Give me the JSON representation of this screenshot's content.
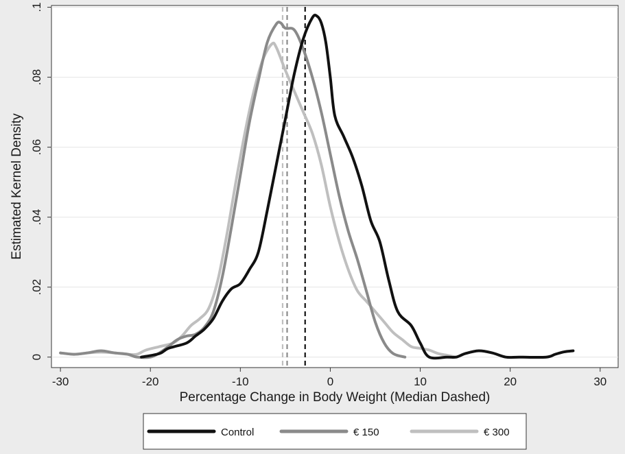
{
  "chart_data": {
    "type": "line",
    "title": "",
    "xlabel": "Percentage Change in Body Weight (Median Dashed)",
    "ylabel": "Estimated Kernel Density",
    "xlim": [
      -31,
      32
    ],
    "ylim": [
      -0.003,
      0.1005
    ],
    "x_ticks": [
      -30,
      -20,
      -10,
      0,
      10,
      20,
      30
    ],
    "x_tick_labels": [
      "-30",
      "-20",
      "-10",
      "0",
      "10",
      "20",
      "30"
    ],
    "y_ticks": [
      0,
      0.02,
      0.04,
      0.06,
      0.08,
      0.1
    ],
    "y_tick_labels": [
      "0",
      ".02",
      ".04",
      ".06",
      ".08",
      ".1"
    ],
    "grid": "horizontal",
    "legend_position": "bottom",
    "series": [
      {
        "name": "Control",
        "color": "#111111",
        "median": -2.8,
        "points": [
          [
            -21,
            0
          ],
          [
            -19,
            0.001
          ],
          [
            -18,
            0.0025
          ],
          [
            -16,
            0.004
          ],
          [
            -15,
            0.006
          ],
          [
            -14,
            0.008
          ],
          [
            -13,
            0.011
          ],
          [
            -12,
            0.016
          ],
          [
            -11,
            0.0195
          ],
          [
            -10,
            0.021
          ],
          [
            -9,
            0.025
          ],
          [
            -8,
            0.03
          ],
          [
            -7,
            0.042
          ],
          [
            -6,
            0.055
          ],
          [
            -5,
            0.068
          ],
          [
            -4,
            0.081
          ],
          [
            -3,
            0.091
          ],
          [
            -2,
            0.097
          ],
          [
            -1.5,
            0.0975
          ],
          [
            -1,
            0.0955
          ],
          [
            -0.5,
            0.09
          ],
          [
            0,
            0.08
          ],
          [
            0.5,
            0.069
          ],
          [
            1.5,
            0.063
          ],
          [
            2.5,
            0.057
          ],
          [
            3.5,
            0.049
          ],
          [
            4.5,
            0.039
          ],
          [
            5.5,
            0.033
          ],
          [
            6.5,
            0.022
          ],
          [
            7.5,
            0.013
          ],
          [
            9,
            0.009
          ],
          [
            10,
            0.004
          ],
          [
            11,
            0
          ],
          [
            13,
            0
          ],
          [
            14,
            0
          ],
          [
            15,
            0.001
          ],
          [
            16.5,
            0.0018
          ],
          [
            18,
            0.0012
          ],
          [
            19.5,
            0
          ],
          [
            21,
            0
          ],
          [
            24,
            0
          ],
          [
            25,
            0.0008
          ],
          [
            26,
            0.0015
          ],
          [
            27,
            0.0018
          ]
        ]
      },
      {
        "name": "€ 150",
        "color": "#8a8a8a",
        "median": -4.8,
        "points": [
          [
            -30,
            0.0012
          ],
          [
            -28.5,
            0.0008
          ],
          [
            -27,
            0.0012
          ],
          [
            -25.5,
            0.0018
          ],
          [
            -24,
            0.0012
          ],
          [
            -22.5,
            0.0008
          ],
          [
            -21.5,
            0
          ],
          [
            -20,
            0
          ],
          [
            -19,
            0.0012
          ],
          [
            -18,
            0.003
          ],
          [
            -17,
            0.005
          ],
          [
            -16,
            0.006
          ],
          [
            -15,
            0.0065
          ],
          [
            -14,
            0.0085
          ],
          [
            -13,
            0.013
          ],
          [
            -12,
            0.023
          ],
          [
            -11,
            0.037
          ],
          [
            -10,
            0.052
          ],
          [
            -9,
            0.067
          ],
          [
            -8,
            0.079
          ],
          [
            -7,
            0.09
          ],
          [
            -6,
            0.0952
          ],
          [
            -5.5,
            0.0955
          ],
          [
            -5,
            0.094
          ],
          [
            -4,
            0.0935
          ],
          [
            -3,
            0.088
          ],
          [
            -2,
            0.08
          ],
          [
            -1,
            0.07
          ],
          [
            0,
            0.058
          ],
          [
            1,
            0.046
          ],
          [
            2,
            0.036
          ],
          [
            3,
            0.028
          ],
          [
            4,
            0.019
          ],
          [
            5,
            0.01
          ],
          [
            6,
            0.004
          ],
          [
            7,
            0.001
          ],
          [
            8.3,
            0
          ]
        ]
      },
      {
        "name": "€ 300",
        "color": "#bfbfbf",
        "median": -5.3,
        "points": [
          [
            -30,
            0.0012
          ],
          [
            -28.5,
            0.0008
          ],
          [
            -27,
            0.0012
          ],
          [
            -25.5,
            0.0014
          ],
          [
            -24,
            0.0012
          ],
          [
            -22.5,
            0.0008
          ],
          [
            -21.5,
            0.0008
          ],
          [
            -20.5,
            0.002
          ],
          [
            -19,
            0.003
          ],
          [
            -17.5,
            0.004
          ],
          [
            -16.5,
            0.006
          ],
          [
            -15.5,
            0.009
          ],
          [
            -14.5,
            0.011
          ],
          [
            -13.5,
            0.014
          ],
          [
            -12.5,
            0.022
          ],
          [
            -11.5,
            0.035
          ],
          [
            -10.5,
            0.05
          ],
          [
            -9.5,
            0.064
          ],
          [
            -8.5,
            0.076
          ],
          [
            -7.5,
            0.085
          ],
          [
            -6.5,
            0.0895
          ],
          [
            -6,
            0.0885
          ],
          [
            -5,
            0.082
          ],
          [
            -4,
            0.076
          ],
          [
            -3,
            0.07
          ],
          [
            -2,
            0.064
          ],
          [
            -1,
            0.055
          ],
          [
            0,
            0.043
          ],
          [
            1,
            0.033
          ],
          [
            2,
            0.025
          ],
          [
            3,
            0.019
          ],
          [
            4,
            0.016
          ],
          [
            5,
            0.013
          ],
          [
            6,
            0.01
          ],
          [
            7,
            0.007
          ],
          [
            8,
            0.005
          ],
          [
            9,
            0.003
          ],
          [
            10,
            0.0025
          ],
          [
            11,
            0.002
          ],
          [
            12,
            0.001
          ],
          [
            13,
            0.0005
          ],
          [
            14,
            0
          ]
        ]
      }
    ]
  }
}
